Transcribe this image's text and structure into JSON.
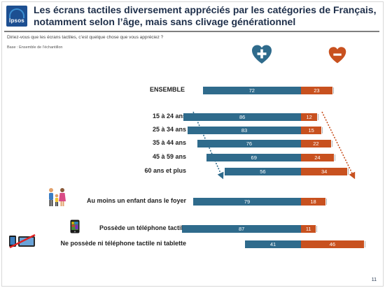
{
  "brand": {
    "logo_text": "Ipsos"
  },
  "title": "Les écrans tactiles diversement appréciés par les catégories de Français,\nnotamment selon l’âge, mais sans clivage générationnel",
  "question": "Diriez-vous que les écrans tactiles, c’est quelque chose que vous appréciez ?",
  "base": "Base : Ensemble de l’échantillon",
  "page_number": "11",
  "icons": {
    "positive": "heart-plus-icon",
    "negative": "heart-minus-icon",
    "family": "family-icon",
    "phone": "smartphone-icon",
    "no_device": "crossed-devices-icon"
  },
  "colors": {
    "positive": "#2f6b8c",
    "negative": "#c8511f",
    "title": "#1e2f4a"
  },
  "chart_data": {
    "type": "bar",
    "categories": [
      "ENSEMBLE",
      "15 à 24 ans",
      "25 à 34 ans",
      "35 à 44 ans",
      "45 à 59 ans",
      "60 ans et plus",
      "Au moins un enfant dans le foyer",
      "Possède un téléphone tactile",
      "Ne possède ni téléphone tactile ni tablette"
    ],
    "series": [
      {
        "values": [
          72,
          86,
          83,
          76,
          69,
          56,
          79,
          87,
          41
        ]
      },
      {
        "values": [
          23,
          12,
          15,
          22,
          24,
          34,
          18,
          11,
          46
        ]
      }
    ],
    "xlim": [
      0,
      100
    ]
  }
}
